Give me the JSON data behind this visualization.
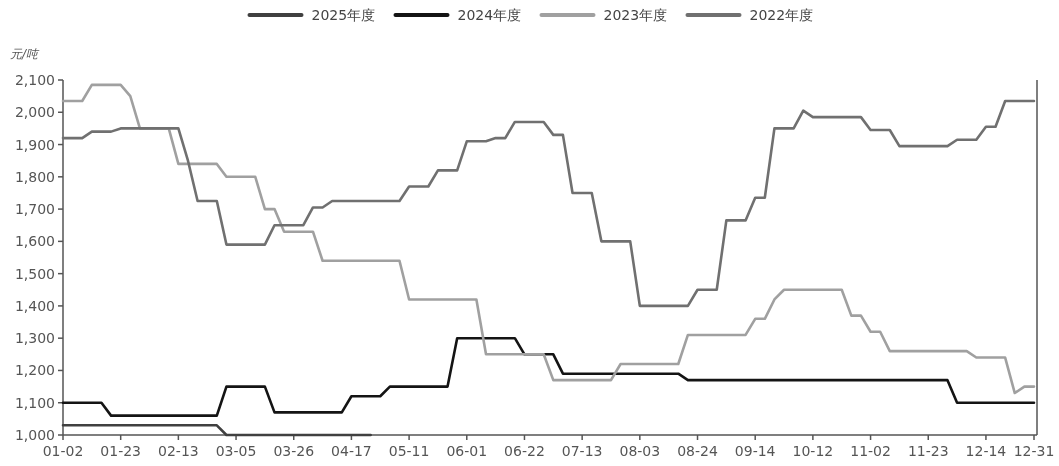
{
  "chart_data": {
    "type": "line",
    "ylabel": "元/吨",
    "legend": "top",
    "ylim": [
      1000,
      2100
    ],
    "yticks": [
      {
        "value": 1000,
        "label": "1,000"
      },
      {
        "value": 1100,
        "label": "1,100"
      },
      {
        "value": 1200,
        "label": "1,200"
      },
      {
        "value": 1300,
        "label": "1,300"
      },
      {
        "value": 1400,
        "label": "1,400"
      },
      {
        "value": 1500,
        "label": "1,500"
      },
      {
        "value": 1600,
        "label": "1,600"
      },
      {
        "value": 1700,
        "label": "1,700"
      },
      {
        "value": 1800,
        "label": "1,800"
      },
      {
        "value": 1900,
        "label": "1,900"
      },
      {
        "value": 2000,
        "label": "2,000"
      },
      {
        "value": 2100,
        "label": "2,100"
      }
    ],
    "categories": [
      "01-02",
      null,
      null,
      null,
      null,
      null,
      "01-23",
      null,
      null,
      null,
      null,
      null,
      "02-13",
      null,
      null,
      null,
      null,
      null,
      "03-05",
      null,
      null,
      null,
      null,
      null,
      "03-26",
      null,
      null,
      null,
      null,
      null,
      "04-17",
      null,
      null,
      null,
      null,
      null,
      "05-11",
      null,
      null,
      null,
      null,
      null,
      "06-01",
      null,
      null,
      null,
      null,
      null,
      "06-22",
      null,
      null,
      null,
      null,
      null,
      "07-13",
      null,
      null,
      null,
      null,
      null,
      "08-03",
      null,
      null,
      null,
      null,
      null,
      "08-24",
      null,
      null,
      null,
      null,
      null,
      "09-14",
      null,
      null,
      null,
      null,
      null,
      "10-12",
      null,
      null,
      null,
      null,
      null,
      "11-02",
      null,
      null,
      null,
      null,
      null,
      "11-23",
      null,
      null,
      null,
      null,
      null,
      "12-14",
      null,
      null,
      null,
      null,
      "12-31"
    ],
    "series": [
      {
        "name": "2025年度",
        "color": "#404040",
        "values": [
          1030,
          1030,
          1030,
          1030,
          1030,
          1030,
          1030,
          1030,
          1030,
          1030,
          1030,
          1030,
          1030,
          1030,
          1030,
          1030,
          1030,
          1000,
          1000,
          1000,
          1000,
          1000,
          1000,
          1000,
          1000,
          1000,
          1000,
          1000,
          1000,
          1000,
          1000,
          1000,
          1000,
          null,
          null,
          null,
          null,
          null,
          null,
          null,
          null,
          null,
          null,
          null,
          null,
          null,
          null,
          null,
          null,
          null,
          null,
          null,
          null,
          null,
          null,
          null,
          null,
          null,
          null,
          null,
          null,
          null,
          null,
          null,
          null,
          null,
          null,
          null,
          null,
          null,
          null,
          null,
          null,
          null,
          null,
          null,
          null,
          null,
          null,
          null,
          null,
          null,
          null,
          null,
          null,
          null,
          null,
          null,
          null,
          null,
          null,
          null,
          null,
          null,
          null,
          null,
          null,
          null,
          null,
          null,
          null,
          null
        ]
      },
      {
        "name": "2024年度",
        "color": "#141414",
        "values": [
          1100,
          1100,
          1100,
          1100,
          1100,
          1060,
          1060,
          1060,
          1060,
          1060,
          1060,
          1060,
          1060,
          1060,
          1060,
          1060,
          1060,
          1150,
          1150,
          1150,
          1150,
          1150,
          1070,
          1070,
          1070,
          1070,
          1070,
          1070,
          1070,
          1070,
          1120,
          1120,
          1120,
          1120,
          1150,
          1150,
          1150,
          1150,
          1150,
          1150,
          1150,
          1300,
          1300,
          1300,
          1300,
          1300,
          1300,
          1300,
          1250,
          1250,
          1250,
          1250,
          1190,
          1190,
          1190,
          1190,
          1190,
          1190,
          1190,
          1190,
          1190,
          1190,
          1190,
          1190,
          1190,
          1170,
          1170,
          1170,
          1170,
          1170,
          1170,
          1170,
          1170,
          1170,
          1170,
          1170,
          1170,
          1170,
          1170,
          1170,
          1170,
          1170,
          1170,
          1170,
          1170,
          1170,
          1170,
          1170,
          1170,
          1170,
          1170,
          1170,
          1170,
          1100,
          1100,
          1100,
          1100,
          1100,
          1100,
          1100,
          1100,
          1100
        ]
      },
      {
        "name": "2023年度",
        "color": "#a0a0a0",
        "values": [
          2035,
          2035,
          2035,
          2085,
          2085,
          2085,
          2085,
          2050,
          1950,
          1950,
          1950,
          1950,
          1840,
          1840,
          1840,
          1840,
          1840,
          1800,
          1800,
          1800,
          1800,
          1700,
          1700,
          1630,
          1630,
          1630,
          1630,
          1540,
          1540,
          1540,
          1540,
          1540,
          1540,
          1540,
          1540,
          1540,
          1420,
          1420,
          1420,
          1420,
          1420,
          1420,
          1420,
          1420,
          1250,
          1250,
          1250,
          1250,
          1250,
          1250,
          1250,
          1170,
          1170,
          1170,
          1170,
          1170,
          1170,
          1170,
          1220,
          1220,
          1220,
          1220,
          1220,
          1220,
          1220,
          1310,
          1310,
          1310,
          1310,
          1310,
          1310,
          1310,
          1360,
          1360,
          1420,
          1450,
          1450,
          1450,
          1450,
          1450,
          1450,
          1450,
          1370,
          1370,
          1320,
          1320,
          1260,
          1260,
          1260,
          1260,
          1260,
          1260,
          1260,
          1260,
          1260,
          1240,
          1240,
          1240,
          1240,
          1130,
          1150,
          1150
        ]
      },
      {
        "name": "2022年度",
        "color": "#707070",
        "values": [
          1920,
          1920,
          1920,
          1940,
          1940,
          1940,
          1950,
          1950,
          1950,
          1950,
          1950,
          1950,
          1950,
          1850,
          1725,
          1725,
          1725,
          1590,
          1590,
          1590,
          1590,
          1590,
          1650,
          1650,
          1650,
          1650,
          1705,
          1705,
          1725,
          1725,
          1725,
          1725,
          1725,
          1725,
          1725,
          1725,
          1770,
          1770,
          1770,
          1820,
          1820,
          1820,
          1910,
          1910,
          1910,
          1920,
          1920,
          1970,
          1970,
          1970,
          1970,
          1930,
          1930,
          1750,
          1750,
          1750,
          1600,
          1600,
          1600,
          1600,
          1400,
          1400,
          1400,
          1400,
          1400,
          1400,
          1450,
          1450,
          1450,
          1665,
          1665,
          1665,
          1735,
          1735,
          1950,
          1950,
          1950,
          2005,
          1985,
          1985,
          1985,
          1985,
          1985,
          1985,
          1945,
          1945,
          1945,
          1895,
          1895,
          1895,
          1895,
          1895,
          1895,
          1915,
          1915,
          1915,
          1955,
          1955,
          2035,
          2035,
          2035,
          2035
        ]
      }
    ]
  }
}
